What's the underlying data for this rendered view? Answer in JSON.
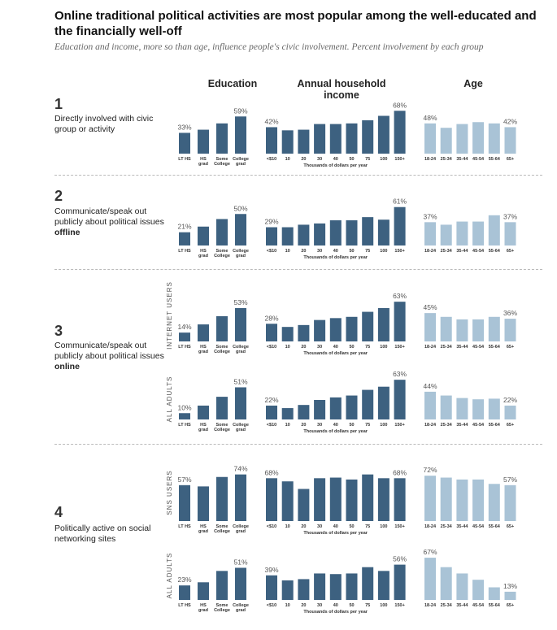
{
  "title": "Online traditional political activities are most popular among the well-educated and the financially well-off",
  "subtitle": "Education and income, more so than age, influence people's civic involvement. Percent involvement by each group",
  "columns": {
    "education": "Education",
    "income": "Annual household income",
    "age": "Age"
  },
  "income_axis_label": "Thousands of dollars per year",
  "rows": [
    {
      "number": "1",
      "desc_pre": "Directly involved with civic group or activity",
      "desc_bold": ""
    },
    {
      "number": "2",
      "desc_pre": "Communicate/speak out publicly about political issues ",
      "desc_bold": "offline"
    },
    {
      "number": "3",
      "desc_pre": "Communicate/speak out publicly about political issues ",
      "desc_bold": "online"
    },
    {
      "number": "4",
      "desc_pre": "Politically active on social networking sites",
      "desc_bold": ""
    }
  ],
  "colors": {
    "education": "#3d6180",
    "income": "#3d6180",
    "age": "#a9c3d6"
  },
  "chart_data": {
    "type": "bar",
    "groups": {
      "education": [
        "LT HS",
        "HS grad",
        "Some College",
        "College grad"
      ],
      "income": [
        "<$10",
        "10",
        "20",
        "30",
        "40",
        "50",
        "75",
        "100",
        "150+"
      ],
      "age": [
        "18-24",
        "25-34",
        "35-44",
        "45-54",
        "55-64",
        "65+"
      ]
    },
    "panels": [
      {
        "row": "1",
        "sublabel": "",
        "education": [
          33,
          38,
          48,
          59
        ],
        "income": [
          42,
          37,
          38,
          47,
          47,
          48,
          53,
          60,
          68
        ],
        "age": [
          48,
          41,
          47,
          50,
          48,
          42
        ]
      },
      {
        "row": "2",
        "sublabel": "",
        "education": [
          21,
          30,
          42,
          50
        ],
        "income": [
          29,
          29,
          33,
          35,
          40,
          40,
          45,
          41,
          61
        ],
        "age": [
          37,
          33,
          38,
          38,
          48,
          37
        ]
      },
      {
        "row": "3",
        "sublabel": "INTERNET USERS",
        "education": [
          14,
          27,
          40,
          53
        ],
        "income": [
          28,
          23,
          26,
          34,
          37,
          39,
          47,
          53,
          63
        ],
        "age": [
          45,
          39,
          35,
          35,
          39,
          36
        ]
      },
      {
        "row": "3",
        "sublabel": "ALL ADULTS",
        "education": [
          10,
          22,
          36,
          51
        ],
        "income": [
          22,
          18,
          23,
          31,
          35,
          38,
          47,
          52,
          63
        ],
        "age": [
          44,
          38,
          34,
          32,
          33,
          22
        ]
      },
      {
        "row": "4",
        "sublabel": "SNS USERS",
        "education": [
          57,
          55,
          70,
          74
        ],
        "income": [
          68,
          63,
          51,
          68,
          69,
          66,
          74,
          68,
          68
        ],
        "age": [
          72,
          69,
          66,
          66,
          59,
          57
        ]
      },
      {
        "row": "4",
        "sublabel": "ALL ADULTS",
        "education": [
          23,
          28,
          46,
          51
        ],
        "income": [
          39,
          31,
          33,
          42,
          41,
          42,
          52,
          46,
          56
        ],
        "age": [
          67,
          52,
          42,
          32,
          20,
          13
        ]
      }
    ],
    "labels": {
      "education": {
        "0": [
          0,
          3
        ],
        "1": [
          0,
          3
        ],
        "2": [
          0,
          3
        ],
        "3": [
          0,
          3
        ],
        "4": [
          0,
          3
        ],
        "5": [
          0,
          3
        ]
      },
      "income": {
        "0": [
          0,
          8
        ],
        "1": [
          0,
          8
        ],
        "2": [
          0,
          8
        ],
        "3": [
          0,
          8
        ],
        "4": [
          0,
          8
        ],
        "5": [
          0,
          8
        ]
      },
      "age": {
        "0": [
          0,
          5
        ],
        "1": [
          0,
          5
        ],
        "2": [
          0,
          5
        ],
        "3": [
          0,
          5
        ],
        "4": [
          0,
          5
        ],
        "5": [
          0,
          5
        ]
      }
    },
    "ylim": [
      0,
      80
    ]
  }
}
